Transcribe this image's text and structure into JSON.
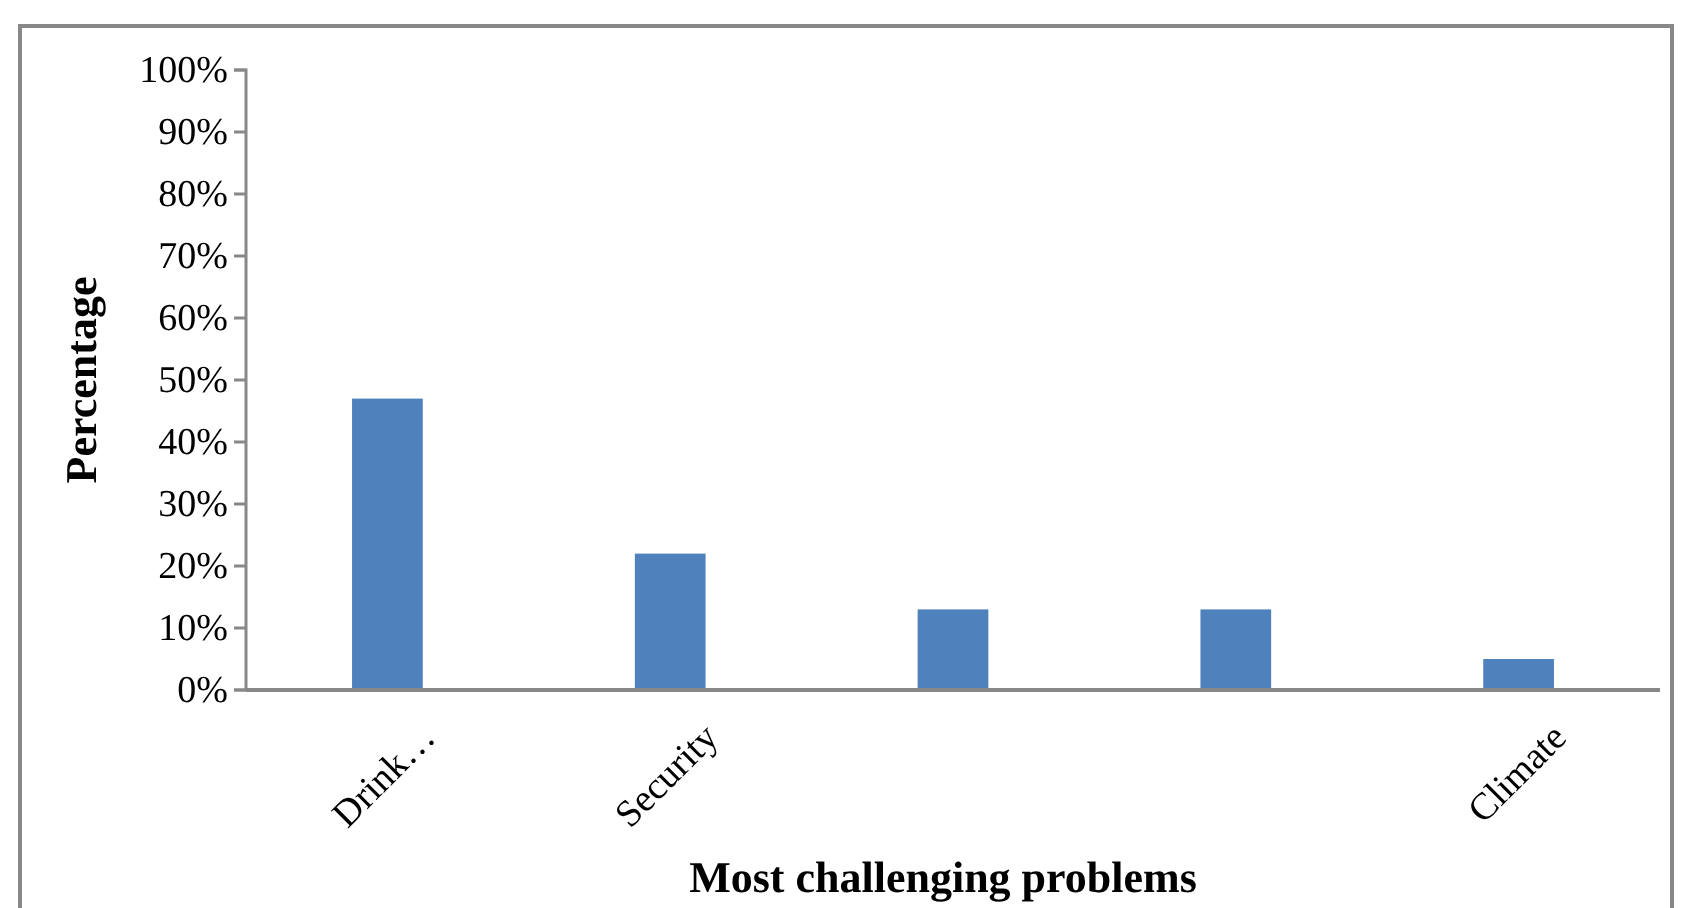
{
  "chart_data": {
    "type": "bar",
    "xlabel": "Most challenging problems",
    "ylabel": "Percentage",
    "categories": [
      "Drink…",
      "Security",
      null,
      null,
      "Climate"
    ],
    "values": [
      47,
      22,
      13,
      13,
      5
    ],
    "color": "#4f81bd",
    "ylim": [
      0,
      100
    ],
    "yticks": [
      {
        "value": 0,
        "label": "0%"
      },
      {
        "value": 10,
        "label": "10%"
      },
      {
        "value": 20,
        "label": "20%"
      },
      {
        "value": 30,
        "label": "30%"
      },
      {
        "value": 40,
        "label": "40%"
      },
      {
        "value": 50,
        "label": "50%"
      },
      {
        "value": 60,
        "label": "60%"
      },
      {
        "value": 70,
        "label": "70%"
      },
      {
        "value": 80,
        "label": "80%"
      },
      {
        "value": 90,
        "label": "90%"
      },
      {
        "value": 100,
        "label": "100%"
      }
    ],
    "grid": false
  }
}
